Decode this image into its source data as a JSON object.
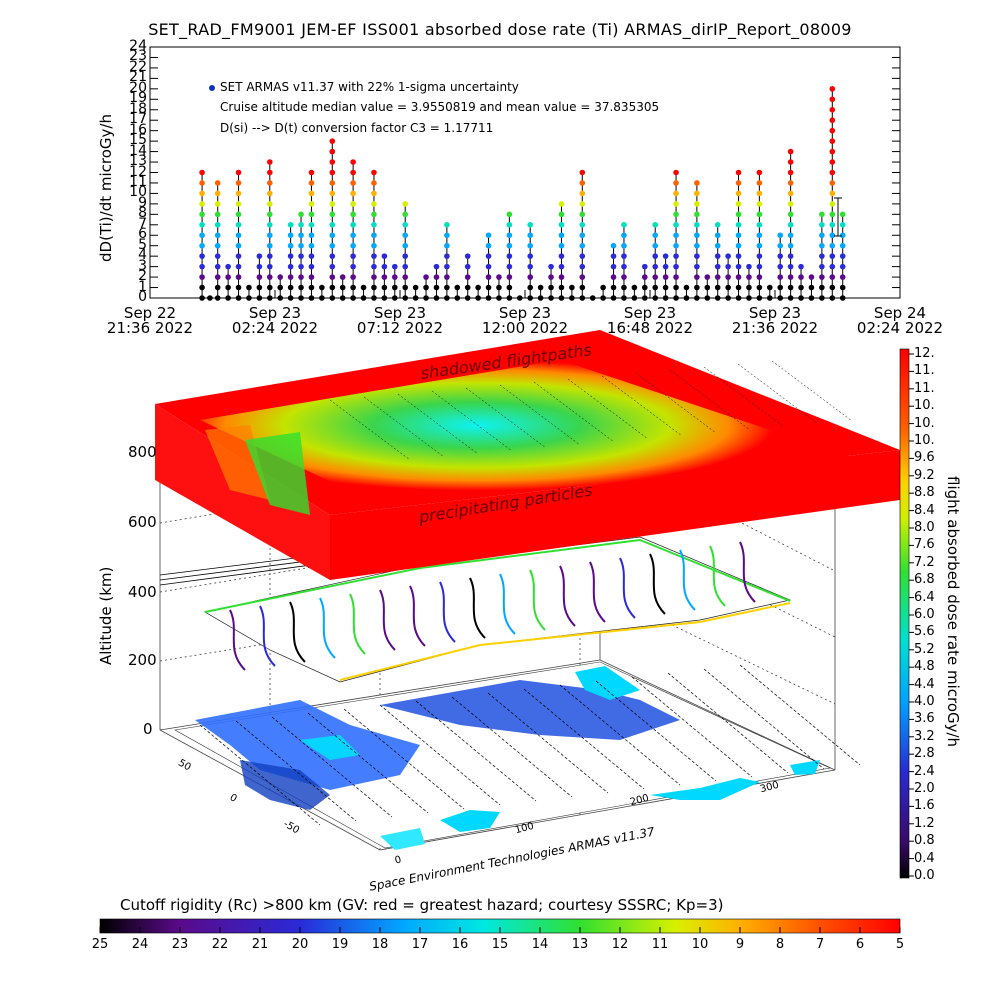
{
  "title": "SET_RAD_FM9001  JEM-EF ISS001 absorbed dose rate (Ti) ARMAS_dirIP_Report_08009",
  "chart_data": [
    {
      "type": "scatter",
      "ylabel": "dD(Ti)/dt microGy/h",
      "ylim": [
        0,
        24
      ],
      "y_ticks": [
        "0",
        "1",
        "2",
        "3",
        "4",
        "5",
        "6",
        "7",
        "8",
        "9",
        "10",
        "11",
        "12",
        "13",
        "14",
        "15",
        "16",
        "17",
        "18",
        "19",
        "20",
        "21",
        "22",
        "23",
        "24"
      ],
      "x_ticks": [
        {
          "l1": "Sep 22",
          "l2": "21:36 2022"
        },
        {
          "l1": "Sep 23",
          "l2": "02:24 2022"
        },
        {
          "l1": "Sep 23",
          "l2": "07:12 2022"
        },
        {
          "l1": "Sep 23",
          "l2": "12:00 2022"
        },
        {
          "l1": "Sep 23",
          "l2": "16:48 2022"
        },
        {
          "l1": "Sep 23",
          "l2": "21:36 2022"
        },
        {
          "l1": "Sep 24",
          "l2": "02:24 2022"
        }
      ],
      "legend": "SET ARMAS v11.37 with 22% 1-sigma uncertainty",
      "annotations": [
        "Cruise altitude median value = 3.9550819 and mean value = 37.835305",
        "D(si) --> D(t) conversion factor C3 = 1.17711"
      ],
      "series": [
        {
          "x_hours_offset": [
            2.0,
            2.3,
            2.6,
            3.0,
            3.4,
            3.8,
            4.2,
            4.6,
            5.0,
            5.4,
            5.8,
            6.2,
            6.6,
            7.0,
            7.4,
            7.8,
            8.2,
            8.6,
            9.0,
            9.4,
            9.8,
            10.2,
            10.6,
            11.0,
            11.4,
            11.8,
            12.2,
            12.6,
            13.0,
            13.4,
            13.8,
            14.2,
            14.6,
            15.0,
            15.4,
            15.8,
            16.2,
            16.6,
            17.0,
            17.4,
            17.8,
            18.2,
            18.6,
            19.0,
            19.4,
            19.8,
            20.2,
            20.6,
            21.0,
            21.4,
            21.8,
            22.2,
            22.6,
            23.0,
            23.4,
            23.8,
            24.2,
            24.6,
            25.0,
            25.4,
            25.8,
            26.2,
            26.6
          ],
          "values": [
            12,
            0,
            11,
            3,
            12,
            1,
            4,
            13,
            2,
            7,
            8,
            12,
            1,
            15,
            2,
            13,
            1,
            12,
            4,
            3,
            9,
            1,
            2,
            3,
            7,
            1,
            4,
            1,
            6,
            2,
            8,
            0,
            7,
            1,
            3,
            9,
            1,
            12,
            0,
            1,
            5,
            7,
            1,
            3,
            7,
            4,
            12,
            1,
            11,
            2,
            7,
            4,
            12,
            3,
            12,
            1,
            6,
            14,
            3,
            2,
            8,
            20,
            8
          ]
        }
      ]
    },
    {
      "type": "surface3d",
      "zlabel": "Altitude (km)",
      "z_ticks": [
        "0",
        "200",
        "400",
        "600",
        "800"
      ],
      "x_ticks": [
        "0",
        "100",
        "200",
        "300"
      ],
      "y_ticks": [
        "-50",
        "0",
        "50"
      ],
      "labels": [
        "shadowed flightpaths",
        "precipitating particles"
      ],
      "credit": "Space Environment Technologies ARMAS v11.37"
    },
    {
      "type": "colorbar",
      "label": "flight absorbed dose rate microGy/h",
      "ticks": [
        "0.0",
        "0.4",
        "0.8",
        "1.2",
        "1.6",
        "2.0",
        "2.4",
        "2.8",
        "3.2",
        "3.6",
        "4.0",
        "4.4",
        "4.8",
        "5.2",
        "5.6",
        "6.0",
        "6.4",
        "6.8",
        "7.2",
        "7.6",
        "8.0",
        "8.4",
        "8.8",
        "9.2",
        "9.6",
        "10.",
        "10.",
        "10.",
        "11.",
        "11.",
        "12."
      ]
    },
    {
      "type": "colorbar",
      "label": "Cutoff rigidity (Rc) >800 km (GV: red = greatest hazard; courtesy SSSRC; Kp=3)",
      "ticks": [
        "25",
        "24",
        "23",
        "22",
        "21",
        "20",
        "19",
        "18",
        "17",
        "16",
        "15",
        "14",
        "13",
        "12",
        "11",
        "10",
        "9",
        "8",
        "7",
        "6",
        "5"
      ]
    }
  ]
}
